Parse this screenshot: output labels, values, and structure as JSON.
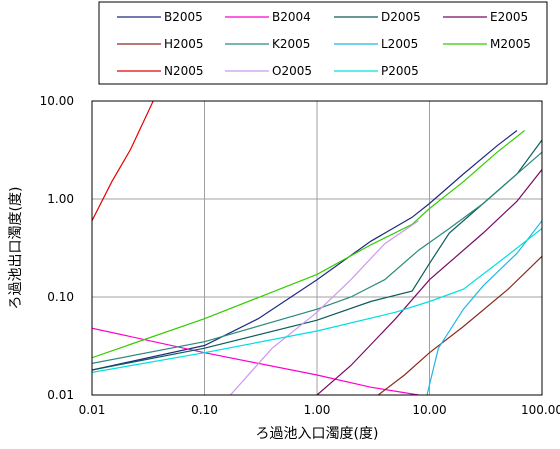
{
  "chart_data": {
    "type": "line",
    "xlabel": "ろ過池入口濁度(度)",
    "ylabel": "ろ過池出口濁度(度)",
    "x_scale": "log",
    "y_scale": "log",
    "xlim": [
      0.01,
      100
    ],
    "ylim": [
      0.01,
      10
    ],
    "x_tick_labels": [
      "0.01",
      "0.10",
      "1.00",
      "10.00",
      "100.00"
    ],
    "y_tick_labels": [
      "0.01",
      "0.10",
      "1.00",
      "10.00"
    ],
    "grid": true,
    "legend_position": "top",
    "series": [
      {
        "name": "B2005",
        "color": "#1f2b80",
        "points": [
          [
            0.01,
            0.018
          ],
          [
            0.1,
            0.032
          ],
          [
            0.3,
            0.06
          ],
          [
            1,
            0.15
          ],
          [
            3,
            0.37
          ],
          [
            7,
            0.65
          ],
          [
            10,
            0.9
          ],
          [
            20,
            1.8
          ],
          [
            40,
            3.5
          ],
          [
            60,
            5.0
          ]
        ]
      },
      {
        "name": "B2004",
        "color": "#ff00cc",
        "points": [
          [
            0.01,
            0.048
          ],
          [
            0.1,
            0.027
          ],
          [
            1,
            0.016
          ],
          [
            3,
            0.012
          ],
          [
            8,
            0.01
          ]
        ]
      },
      {
        "name": "D2005",
        "color": "#0c5c5c",
        "points": [
          [
            0.01,
            0.018
          ],
          [
            0.1,
            0.03
          ],
          [
            1,
            0.058
          ],
          [
            3,
            0.09
          ],
          [
            7,
            0.115
          ],
          [
            10,
            0.22
          ],
          [
            15,
            0.45
          ],
          [
            30,
            0.9
          ],
          [
            60,
            1.8
          ],
          [
            100,
            4.0
          ]
        ]
      },
      {
        "name": "E2005",
        "color": "#7a0a66",
        "points": [
          [
            1,
            0.01
          ],
          [
            2,
            0.02
          ],
          [
            5,
            0.06
          ],
          [
            10,
            0.15
          ],
          [
            30,
            0.45
          ],
          [
            60,
            0.95
          ],
          [
            100,
            2.0
          ]
        ]
      },
      {
        "name": "H2005",
        "color": "#8b2a1a",
        "points": [
          [
            3.5,
            0.01
          ],
          [
            6,
            0.016
          ],
          [
            10,
            0.027
          ],
          [
            20,
            0.05
          ],
          [
            50,
            0.12
          ],
          [
            100,
            0.26
          ]
        ]
      },
      {
        "name": "K2005",
        "color": "#2a8a7a",
        "points": [
          [
            0.01,
            0.021
          ],
          [
            0.1,
            0.035
          ],
          [
            1,
            0.075
          ],
          [
            2,
            0.1
          ],
          [
            4,
            0.15
          ],
          [
            8,
            0.3
          ],
          [
            15,
            0.5
          ],
          [
            30,
            0.9
          ],
          [
            50,
            1.5
          ],
          [
            100,
            3.0
          ]
        ]
      },
      {
        "name": "L2005",
        "color": "#1fb6e6",
        "points": [
          [
            9.5,
            0.01
          ],
          [
            12,
            0.03
          ],
          [
            20,
            0.075
          ],
          [
            30,
            0.13
          ],
          [
            60,
            0.28
          ],
          [
            100,
            0.6
          ]
        ]
      },
      {
        "name": "M2005",
        "color": "#33cc00",
        "points": [
          [
            0.01,
            0.024
          ],
          [
            0.1,
            0.06
          ],
          [
            1,
            0.17
          ],
          [
            3,
            0.34
          ],
          [
            7,
            0.55
          ],
          [
            10,
            0.8
          ],
          [
            20,
            1.5
          ],
          [
            40,
            3.0
          ],
          [
            70,
            5.0
          ]
        ]
      },
      {
        "name": "N2005",
        "color": "#e60000",
        "points": [
          [
            0.01,
            0.6
          ],
          [
            0.015,
            1.5
          ],
          [
            0.022,
            3.2
          ],
          [
            0.035,
            10
          ]
        ]
      },
      {
        "name": "O2005",
        "color": "#cc99ee",
        "points": [
          [
            0.17,
            0.01
          ],
          [
            0.4,
            0.03
          ],
          [
            1,
            0.07
          ],
          [
            2,
            0.15
          ],
          [
            4,
            0.35
          ],
          [
            8,
            0.6
          ]
        ]
      },
      {
        "name": "P2005",
        "color": "#00e0e0",
        "points": [
          [
            0.01,
            0.017
          ],
          [
            0.1,
            0.027
          ],
          [
            1,
            0.045
          ],
          [
            5,
            0.07
          ],
          [
            10,
            0.09
          ],
          [
            20,
            0.12
          ],
          [
            40,
            0.22
          ],
          [
            100,
            0.5
          ]
        ]
      }
    ]
  }
}
